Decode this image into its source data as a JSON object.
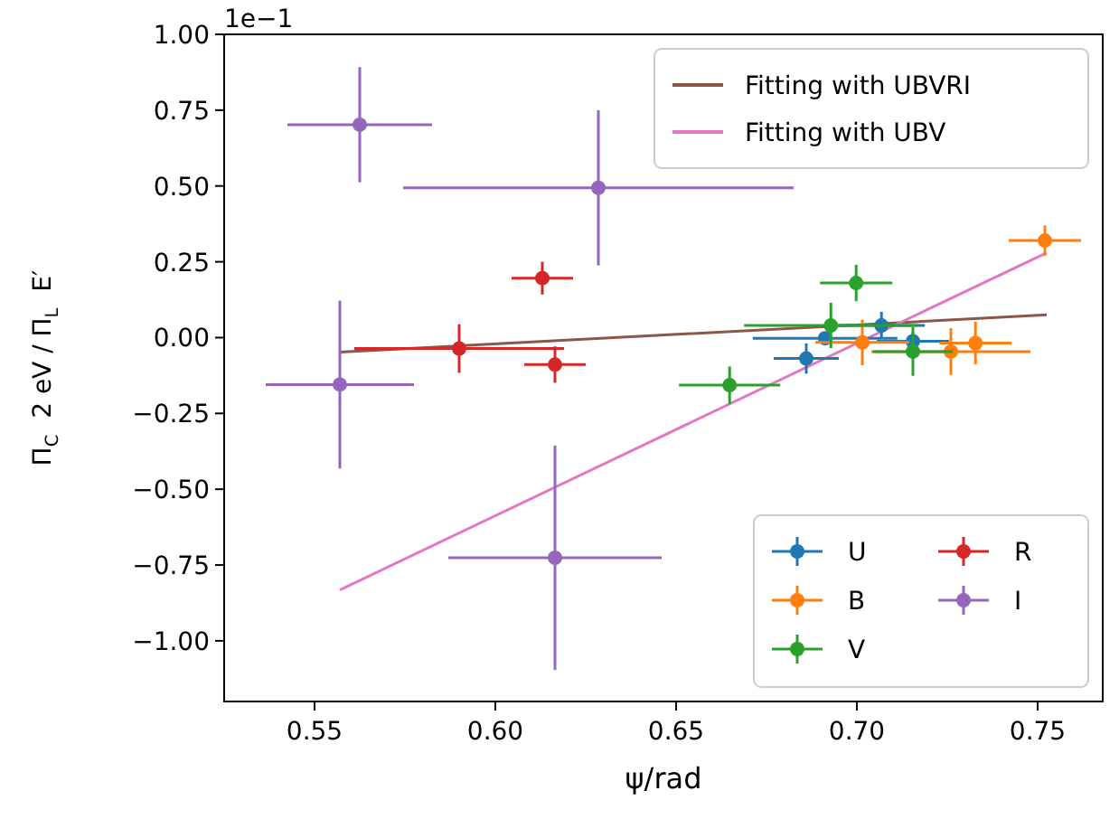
{
  "chart_data": {
    "type": "scatter",
    "xlabel": "ψ/rad",
    "ylabel": "Π$_{C}$ 2 eV / Π$_{L}$ E′",
    "annotations": [
      "1e−1"
    ],
    "xlim": [
      0.525,
      0.768
    ],
    "ylim": [
      -1.2,
      1.0
    ],
    "xticks": [
      {
        "value": 0.55,
        "label": "0.55"
      },
      {
        "value": 0.6,
        "label": "0.60"
      },
      {
        "value": 0.65,
        "label": "0.65"
      },
      {
        "value": 0.7,
        "label": "0.70"
      },
      {
        "value": 0.75,
        "label": "0.75"
      }
    ],
    "yticks": [
      {
        "value": -1,
        "label": "−1.00"
      },
      {
        "value": -0.75,
        "label": "−0.75"
      },
      {
        "value": -0.5,
        "label": "−0.50"
      },
      {
        "value": -0.25,
        "label": "−0.25"
      },
      {
        "value": 0,
        "label": "0.00"
      },
      {
        "value": 0.25,
        "label": "0.25"
      },
      {
        "value": 0.5,
        "label": "0.50"
      },
      {
        "value": 0.75,
        "label": "0.75"
      },
      {
        "value": 1,
        "label": "1.00"
      }
    ],
    "legend": "right",
    "marker": "circle",
    "grid": false,
    "series": [
      {
        "name": "Fitting with UBVRI",
        "type": "line",
        "marker": "none",
        "color": "#8c564b",
        "x": [
          0.557,
          0.7525
        ],
        "values": [
          -0.048,
          0.075
        ]
      },
      {
        "name": "Fitting with UBV",
        "type": "line",
        "marker": "none",
        "color": "#e377c2",
        "x": [
          0.557,
          0.7525
        ],
        "values": [
          -0.832,
          0.28
        ]
      },
      {
        "name": "U",
        "color": "#1f77b4",
        "x": [
          0.7068,
          0.6912,
          0.7155,
          0.686
        ],
        "values": [
          0.04,
          -0.002,
          -0.012,
          -0.069
        ],
        "xerrors": [
          0.012,
          0.02,
          0.01,
          0.009
        ],
        "errors": [
          0.045,
          0.02,
          0.03,
          0.05
        ]
      },
      {
        "name": "B",
        "color": "#ff7f0e",
        "x": [
          0.752,
          0.7015,
          0.726,
          0.7328
        ],
        "values": [
          0.32,
          -0.016,
          -0.046,
          -0.018
        ],
        "xerrors": [
          0.01,
          0.013,
          0.022,
          0.01
        ],
        "errors": [
          0.05,
          0.075,
          0.077,
          0.07
        ]
      },
      {
        "name": "V",
        "color": "#2ca02c",
        "x": [
          0.6998,
          0.6928,
          0.7155,
          0.6648
        ],
        "values": [
          0.18,
          0.04,
          -0.046,
          -0.157
        ],
        "xerrors": [
          0.01,
          0.024,
          0.011,
          0.014
        ],
        "errors": [
          0.06,
          0.075,
          0.08,
          0.062
        ]
      },
      {
        "name": "R",
        "color": "#d62728",
        "x": [
          0.613,
          0.59,
          0.6165
        ],
        "values": [
          0.196,
          -0.036,
          -0.089
        ],
        "xerrors": [
          0.0085,
          0.029,
          0.0085
        ],
        "errors": [
          0.054,
          0.08,
          0.06
        ]
      },
      {
        "name": "I",
        "color": "#9467bd",
        "x": [
          0.5625,
          0.6285,
          0.557,
          0.6165
        ],
        "values": [
          0.702,
          0.494,
          -0.155,
          -0.726
        ],
        "xerrors": [
          0.02,
          0.054,
          0.0205,
          0.0295
        ],
        "errors": [
          0.19,
          0.256,
          0.277,
          0.37
        ]
      }
    ]
  }
}
